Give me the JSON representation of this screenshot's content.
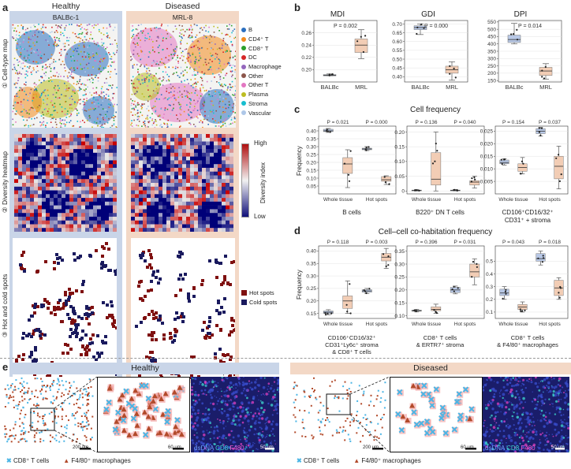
{
  "panel_a": {
    "label": "a",
    "headers": {
      "healthy": "Healthy",
      "diseased": "Diseased"
    },
    "samples": {
      "healthy": "BALBc-1",
      "diseased": "MRL-8"
    },
    "rows": [
      "① Cell-type map",
      "② Diversity heatmap",
      "③ Hot and cold spots"
    ],
    "legend": [
      {
        "name": "B",
        "color": "#2b6fbf"
      },
      {
        "name": "CD4⁺ T",
        "color": "#f28b1e"
      },
      {
        "name": "CD8⁺ T",
        "color": "#2ca02c"
      },
      {
        "name": "DC",
        "color": "#d62728"
      },
      {
        "name": "Macrophage",
        "color": "#9467bd"
      },
      {
        "name": "Other",
        "color": "#8c564b"
      },
      {
        "name": "Other T",
        "color": "#e377c2"
      },
      {
        "name": "Plasma",
        "color": "#bcbd22"
      },
      {
        "name": "Stroma",
        "color": "#17becf"
      },
      {
        "name": "Vascular",
        "color": "#aec7e8"
      }
    ],
    "colorbar": {
      "title": "Diversity index",
      "high": "High",
      "low": "Low"
    },
    "spots": [
      {
        "name": "Hot spots",
        "color": "#7f1010"
      },
      {
        "name": "Cold spots",
        "color": "#1a1a5e"
      }
    ],
    "scalebar": "200 μm"
  },
  "chart_data": [
    {
      "panel": "b",
      "type": "box",
      "title": "MDI",
      "categories": [
        "BALBc",
        "MRL"
      ],
      "pvalue": "P = 0.002",
      "ylim": [
        0.18,
        0.28
      ],
      "yticks": [
        0.2,
        0.22,
        0.24,
        0.26
      ],
      "ytick_labels": [
        "0.20",
        "0.22",
        "0.24",
        "0.26"
      ],
      "boxes": [
        {
          "min": 0.19,
          "q1": 0.19,
          "median": 0.191,
          "q3": 0.192,
          "max": 0.193
        },
        {
          "min": 0.218,
          "q1": 0.228,
          "median": 0.24,
          "q3": 0.25,
          "max": 0.265
        }
      ]
    },
    {
      "panel": "b",
      "type": "box",
      "title": "GDI",
      "categories": [
        "BALBc",
        "MRL"
      ],
      "pvalue": "P = 0.000",
      "ylim": [
        0.37,
        0.72
      ],
      "yticks": [
        0.4,
        0.45,
        0.5,
        0.55,
        0.6,
        0.65,
        0.7
      ],
      "ytick_labels": [
        "0.40",
        "0.45",
        "0.50",
        "0.55",
        "0.60",
        "0.65",
        "0.70"
      ],
      "boxes": [
        {
          "min": 0.64,
          "q1": 0.668,
          "median": 0.68,
          "q3": 0.69,
          "max": 0.7
        },
        {
          "min": 0.38,
          "q1": 0.42,
          "median": 0.44,
          "q3": 0.46,
          "max": 0.485
        }
      ]
    },
    {
      "panel": "b",
      "type": "box",
      "title": "DPI",
      "categories": [
        "BALBc",
        "MRL"
      ],
      "pvalue": "P = 0.014",
      "ylim": [
        140,
        560
      ],
      "yticks": [
        150,
        200,
        250,
        300,
        350,
        400,
        450,
        500,
        550
      ],
      "ytick_labels": [
        "150",
        "200",
        "250",
        "300",
        "350",
        "400",
        "450",
        "500",
        "550"
      ],
      "boxes": [
        {
          "min": 400,
          "q1": 410,
          "median": 430,
          "q3": 460,
          "max": 540
        },
        {
          "min": 160,
          "q1": 185,
          "median": 215,
          "q3": 240,
          "max": 265
        }
      ]
    },
    {
      "panel": "c",
      "type": "box",
      "title": "Cell frequency",
      "ylabel": "Frequency",
      "xgroup": "B cells",
      "categories": [
        "Whole tissue",
        "Hot spots"
      ],
      "pvalues": [
        "P = 0.021",
        "P = 0.000"
      ],
      "ylim": [
        0.0,
        0.43
      ],
      "yticks": [
        0.05,
        0.1,
        0.15,
        0.2,
        0.25,
        0.3,
        0.35,
        0.4
      ],
      "ytick_labels": [
        "0.05",
        "0.10",
        "0.15",
        "0.20",
        "0.25",
        "0.30",
        "0.35",
        "0.40"
      ],
      "boxes": [
        {
          "min": 0.39,
          "q1": 0.395,
          "median": 0.4,
          "q3": 0.41,
          "max": 0.415
        },
        {
          "min": 0.04,
          "q1": 0.13,
          "median": 0.19,
          "q3": 0.23,
          "max": 0.28
        },
        {
          "min": 0.275,
          "q1": 0.28,
          "median": 0.285,
          "q3": 0.29,
          "max": 0.3
        },
        {
          "min": 0.06,
          "q1": 0.08,
          "median": 0.09,
          "q3": 0.11,
          "max": 0.115
        }
      ]
    },
    {
      "panel": "c",
      "type": "box",
      "xgroup": "B220⁺ DN T cells",
      "categories": [
        "Whole tissue",
        "Hot spots"
      ],
      "pvalues": [
        "P = 0.136",
        "P = 0.040"
      ],
      "ylim": [
        -0.01,
        0.22
      ],
      "yticks": [
        0.0,
        0.05,
        0.1,
        0.15,
        0.2
      ],
      "ytick_labels": [
        "0",
        "0.05",
        "0.10",
        "0.15",
        "0.20"
      ],
      "boxes": [
        {
          "min": 0.0,
          "q1": 0.001,
          "median": 0.002,
          "q3": 0.003,
          "max": 0.005
        },
        {
          "min": 0.0,
          "q1": 0.02,
          "median": 0.04,
          "q3": 0.13,
          "max": 0.2
        },
        {
          "min": 0.0,
          "q1": 0.001,
          "median": 0.002,
          "q3": 0.003,
          "max": 0.005
        },
        {
          "min": 0.01,
          "q1": 0.02,
          "median": 0.03,
          "q3": 0.035,
          "max": 0.05
        }
      ]
    },
    {
      "panel": "c",
      "type": "box",
      "xgroup": "CD106⁺CD16/32⁺ CD31⁺ stroma",
      "categories": [
        "Whole tissue",
        "Hot spots"
      ],
      "pvalues": [
        "P = 0.154",
        "P = 0.037"
      ],
      "ylim": [
        0.0,
        0.027
      ],
      "yticks": [
        0.005,
        0.01,
        0.015,
        0.02,
        0.025
      ],
      "ytick_labels": [
        "0.005",
        "0.010",
        "0.015",
        "0.020",
        "0.025"
      ],
      "boxes": [
        {
          "min": 0.0115,
          "q1": 0.012,
          "median": 0.0125,
          "q3": 0.0135,
          "max": 0.014
        },
        {
          "min": 0.008,
          "q1": 0.009,
          "median": 0.0105,
          "q3": 0.012,
          "max": 0.0145
        },
        {
          "min": 0.023,
          "q1": 0.024,
          "median": 0.025,
          "q3": 0.026,
          "max": 0.0265
        },
        {
          "min": 0.002,
          "q1": 0.006,
          "median": 0.011,
          "q3": 0.015,
          "max": 0.019
        }
      ]
    },
    {
      "panel": "d",
      "type": "box",
      "title": "Cell–cell co-habitation frequency",
      "ylabel": "Frequency",
      "xgroup": "CD106⁺CD16/32⁺ CD31⁺Ly6c⁺ stroma & CD8⁺ T cells",
      "categories": [
        "Whole tissue",
        "Hot spots"
      ],
      "pvalues": [
        "P = 0.118",
        "P = 0.003"
      ],
      "ylim": [
        0.13,
        0.42
      ],
      "yticks": [
        0.15,
        0.2,
        0.25,
        0.3,
        0.35,
        0.4
      ],
      "ytick_labels": [
        "0.15",
        "0.20",
        "0.25",
        "0.30",
        "0.35",
        "0.40"
      ],
      "boxes": [
        {
          "min": 0.145,
          "q1": 0.15,
          "median": 0.155,
          "q3": 0.16,
          "max": 0.165
        },
        {
          "min": 0.15,
          "q1": 0.17,
          "median": 0.2,
          "q3": 0.22,
          "max": 0.28
        },
        {
          "min": 0.23,
          "q1": 0.235,
          "median": 0.24,
          "q3": 0.245,
          "max": 0.25
        },
        {
          "min": 0.33,
          "q1": 0.36,
          "median": 0.375,
          "q3": 0.39,
          "max": 0.41
        }
      ]
    },
    {
      "panel": "d",
      "type": "box",
      "xgroup": "CD8⁺ T cells & ERTR7⁺ stroma",
      "categories": [
        "Whole tissue",
        "Hot spots"
      ],
      "pvalues": [
        "P = 0.396",
        "P = 0.031"
      ],
      "ylim": [
        0.09,
        0.37
      ],
      "yticks": [
        0.1,
        0.15,
        0.2,
        0.25,
        0.3,
        0.35
      ],
      "ytick_labels": [
        "0.10",
        "0.15",
        "0.20",
        "0.25",
        "0.30",
        "0.35"
      ],
      "boxes": [
        {
          "min": 0.115,
          "q1": 0.118,
          "median": 0.12,
          "q3": 0.122,
          "max": 0.125
        },
        {
          "min": 0.11,
          "q1": 0.12,
          "median": 0.125,
          "q3": 0.135,
          "max": 0.145
        },
        {
          "min": 0.185,
          "q1": 0.19,
          "median": 0.2,
          "q3": 0.21,
          "max": 0.215
        },
        {
          "min": 0.22,
          "q1": 0.25,
          "median": 0.27,
          "q3": 0.3,
          "max": 0.32
        }
      ]
    },
    {
      "panel": "d",
      "type": "box",
      "xgroup": "CD8⁺ T cells & F4/80⁺ macrophages",
      "categories": [
        "Whole tissue",
        "Hot spots"
      ],
      "pvalues": [
        "P = 0.043",
        "P = 0.018"
      ],
      "ylim": [
        0.05,
        0.62
      ],
      "yticks": [
        0.1,
        0.2,
        0.3,
        0.4,
        0.5
      ],
      "ytick_labels": [
        "0.1",
        "0.2",
        "0.3",
        "0.4",
        "0.5"
      ],
      "boxes": [
        {
          "min": 0.2,
          "q1": 0.23,
          "median": 0.25,
          "q3": 0.28,
          "max": 0.3
        },
        {
          "min": 0.1,
          "q1": 0.12,
          "median": 0.14,
          "q3": 0.16,
          "max": 0.18
        },
        {
          "min": 0.47,
          "q1": 0.5,
          "median": 0.52,
          "q3": 0.56,
          "max": 0.58
        },
        {
          "min": 0.2,
          "q1": 0.23,
          "median": 0.29,
          "q3": 0.35,
          "max": 0.37
        }
      ]
    }
  ],
  "panel_labels": {
    "b": "b",
    "c": "c",
    "d": "d",
    "e": "e"
  },
  "titles": {
    "c": "Cell frequency",
    "d": "Cell–cell co-habitation frequency",
    "ylabel": "Frequency"
  },
  "xgroup_labels": {
    "c1": "B cells",
    "c2": "B220⁺ DN T cells",
    "c3a": "CD106⁺CD16/32⁺",
    "c3b": "CD31⁺ + stroma",
    "d1a": "CD106⁺CD16/32⁺",
    "d1b": "CD31⁺Ly6c⁺ stroma",
    "d1c": "& CD8⁺ T cells",
    "d2a": "CD8⁺ T cells",
    "d2b": "& ERTR7⁺ stroma",
    "d3a": "CD8⁺ T cells",
    "d3b": "& F4/80⁺ macrophages"
  },
  "panel_e": {
    "healthy": "Healthy",
    "diseased": "Diseased",
    "legend_cd8": "CD8⁺ T cells",
    "legend_mac": "F4/80⁺ macrophages",
    "scale_200": "200 μm",
    "scale_60": "60 μm",
    "scale_50": "50 μm",
    "if_dsDNA": "dsDNA",
    "if_CD8": "CD8",
    "if_F480": "F480",
    "colors": {
      "cd8": "#4bb5e5",
      "mac": "#b24a2a",
      "halo": "#f3a9a9",
      "dsDNA": "#3a4fd0",
      "cd8_if": "#3fd9d0",
      "f480": "#e040c0"
    }
  }
}
